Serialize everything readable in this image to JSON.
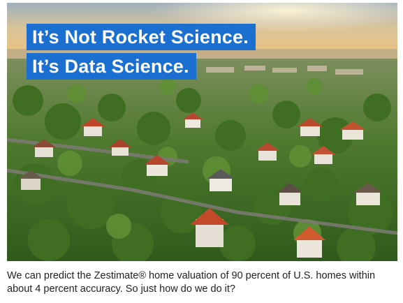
{
  "hero": {
    "headline_line1": "It’s Not Rocket Science.",
    "headline_line2": "It’s Data Science."
  },
  "caption": {
    "text": "We can predict the Zestimate® home valuation of 90 percent of U.S. homes within about 4 percent accuracy. So just how do we do it?"
  },
  "colors": {
    "headline_bg": "#1b6fd1",
    "headline_text": "#ffffff",
    "caption_text": "#222222"
  }
}
